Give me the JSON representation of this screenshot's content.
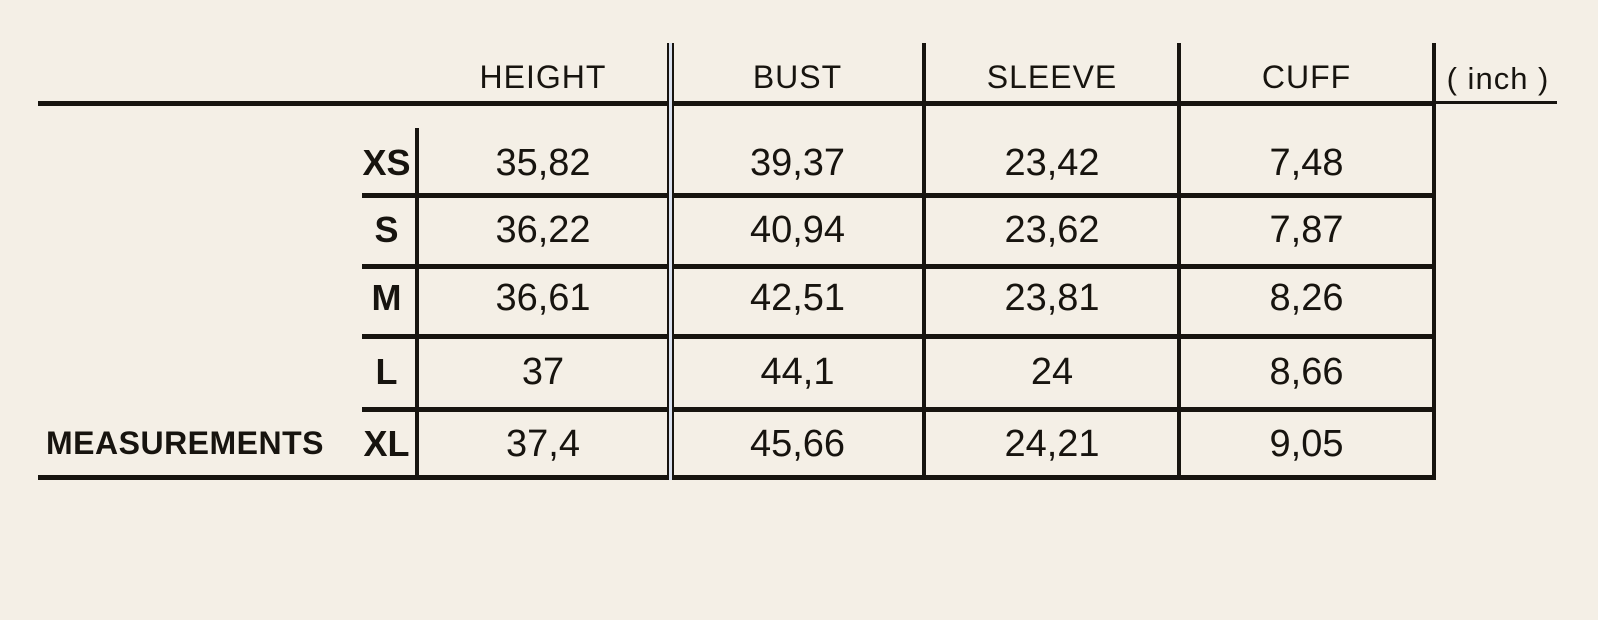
{
  "page": {
    "background_color": "#f4efe6",
    "ink_color": "#17140f",
    "divider_core_color": "#d9e1ef",
    "unit_label": "( inch )"
  },
  "table": {
    "corner_label": "MEASUREMENTS",
    "columns": [
      "HEIGHT",
      "BUST",
      "SLEEVE",
      "CUFF"
    ],
    "rows": [
      {
        "size": "XS",
        "height": "35,82",
        "bust": "39,37",
        "sleeve": "23,42",
        "cuff": "7,48"
      },
      {
        "size": "S",
        "height": "36,22",
        "bust": "40,94",
        "sleeve": "23,62",
        "cuff": "7,87"
      },
      {
        "size": "M",
        "height": "36,61",
        "bust": "42,51",
        "sleeve": "23,81",
        "cuff": "8,26"
      },
      {
        "size": "L",
        "height": "37",
        "bust": "44,1",
        "sleeve": "24",
        "cuff": "8,66"
      },
      {
        "size": "XL",
        "height": "37,4",
        "bust": "45,66",
        "sleeve": "24,21",
        "cuff": "9,05"
      }
    ]
  },
  "chart_data": {
    "type": "table",
    "title": "MEASUREMENTS",
    "unit": "inch",
    "decimal_separator": ",",
    "categories": [
      "XS",
      "S",
      "M",
      "L",
      "XL"
    ],
    "series": [
      {
        "name": "HEIGHT",
        "values": [
          35.82,
          36.22,
          36.61,
          37,
          37.4
        ]
      },
      {
        "name": "BUST",
        "values": [
          39.37,
          40.94,
          42.51,
          44.1,
          45.66
        ]
      },
      {
        "name": "SLEEVE",
        "values": [
          23.42,
          23.62,
          23.81,
          24,
          24.21
        ]
      },
      {
        "name": "CUFF",
        "values": [
          7.48,
          7.87,
          8.26,
          8.66,
          9.05
        ]
      }
    ]
  }
}
